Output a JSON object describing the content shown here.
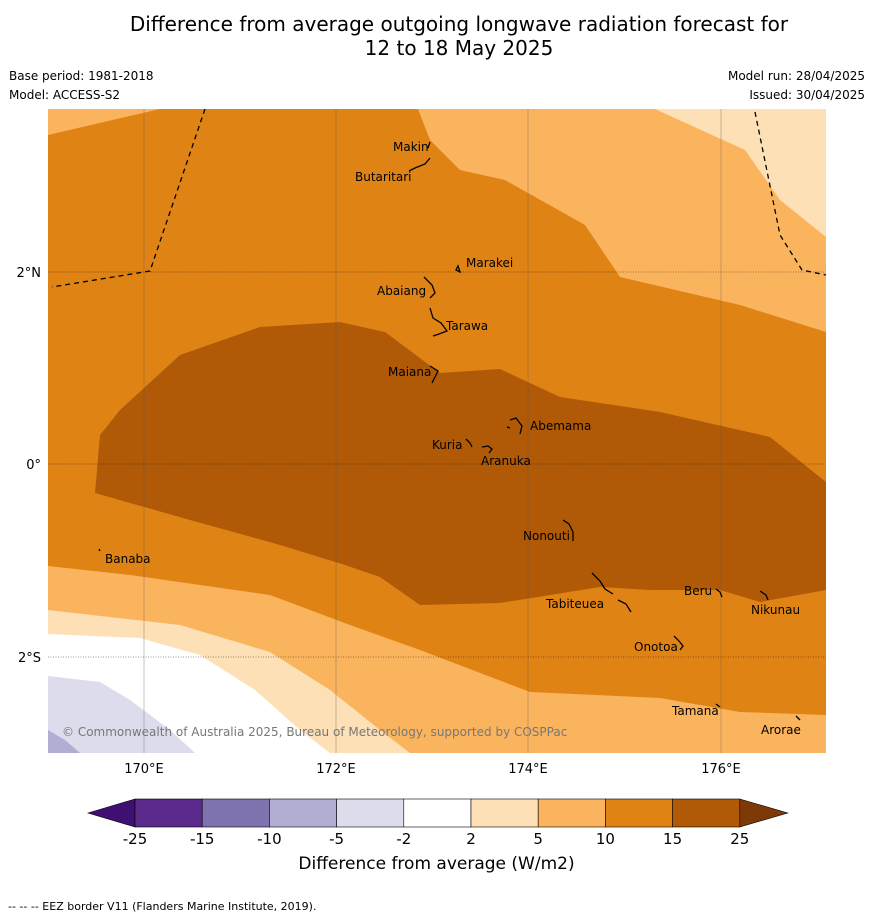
{
  "title_line1": "Difference from average outgoing longwave radiation forecast for",
  "title_line2": "12 to 18 May 2025",
  "base_period": "Base period: 1981-2018",
  "model": "Model: ACCESS-S2",
  "model_run": "Model run: 28/04/2025",
  "issued": "Issued: 30/04/2025",
  "copyright": "© Commonwealth of Australia 2025, Bureau of Meteorology, supported by COSPPac",
  "footnote": "--  --  -- EEZ border V11 (Flanders Marine Institute, 2019).",
  "colorbar": {
    "label": "Difference from average (W/m2)",
    "ticks": [
      "-25",
      "-15",
      "-10",
      "-5",
      "-2",
      "2",
      "5",
      "10",
      "15",
      "25"
    ],
    "colors": [
      "#3f0f72",
      "#5a2a8c",
      "#8072ae",
      "#b2add3",
      "#dcdcec",
      "#ffffff",
      "#fde0b6",
      "#fbb45e",
      "#e08315",
      "#b05a08",
      "#7e3a06"
    ]
  },
  "axes": {
    "x_ticks": [
      "170°E",
      "172°E",
      "174°E",
      "176°E"
    ],
    "y_ticks": [
      "2°N",
      "0°",
      "2°S"
    ]
  },
  "places": [
    {
      "name": "Makin"
    },
    {
      "name": "Butaritari"
    },
    {
      "name": "Marakei"
    },
    {
      "name": "Abaiang"
    },
    {
      "name": "Tarawa"
    },
    {
      "name": "Maiana"
    },
    {
      "name": "Abemama"
    },
    {
      "name": "Kuria"
    },
    {
      "name": "Aranuka"
    },
    {
      "name": "Banaba"
    },
    {
      "name": "Nonouti"
    },
    {
      "name": "Beru"
    },
    {
      "name": "Tabiteuea"
    },
    {
      "name": "Nikunau"
    },
    {
      "name": "Onotoa"
    },
    {
      "name": "Tamana"
    },
    {
      "name": "Arorae"
    }
  ]
}
